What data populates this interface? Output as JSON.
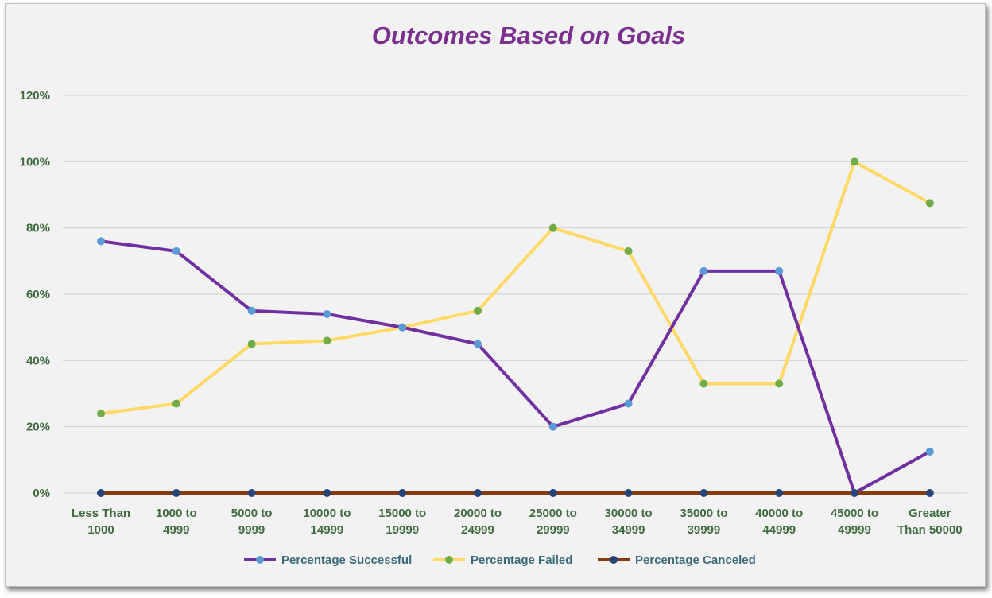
{
  "chart_data": {
    "type": "line",
    "title": "Outcomes Based on Goals",
    "xlabel": "",
    "ylabel": "",
    "ylim": [
      0,
      1.2
    ],
    "yticks": [
      "0%",
      "20%",
      "40%",
      "60%",
      "80%",
      "100%",
      "120%"
    ],
    "categories": [
      "Less Than 1000",
      "1000 to 4999",
      "5000 to 9999",
      "10000 to 14999",
      "15000 to 19999",
      "20000 to 24999",
      "25000 to 29999",
      "30000 to 34999",
      "35000 to 39999",
      "40000 to 44999",
      "45000 to 49999",
      "Greater Than 50000"
    ],
    "category_lines": [
      [
        "Less Than",
        "1000"
      ],
      [
        "1000 to",
        "4999"
      ],
      [
        "5000 to",
        "9999"
      ],
      [
        "10000 to",
        "14999"
      ],
      [
        "15000 to",
        "19999"
      ],
      [
        "20000 to",
        "24999"
      ],
      [
        "25000 to",
        "29999"
      ],
      [
        "30000 to",
        "34999"
      ],
      [
        "35000 to",
        "39999"
      ],
      [
        "40000 to",
        "44999"
      ],
      [
        "45000 to",
        "49999"
      ],
      [
        "Greater",
        "Than 50000"
      ]
    ],
    "series": [
      {
        "name": "Percentage Successful",
        "line_color": "#7030a0",
        "marker_color": "#5b9bd5",
        "values": [
          0.76,
          0.73,
          0.55,
          0.54,
          0.5,
          0.45,
          0.2,
          0.27,
          0.67,
          0.67,
          0.0,
          0.125
        ]
      },
      {
        "name": "Percentage Failed",
        "line_color": "#ffd966",
        "marker_color": "#70ad47",
        "values": [
          0.24,
          0.27,
          0.45,
          0.46,
          0.5,
          0.55,
          0.8,
          0.73,
          0.33,
          0.33,
          1.0,
          0.875
        ]
      },
      {
        "name": "Percentage Canceled",
        "line_color": "#843c0c",
        "marker_color": "#264478",
        "values": [
          0,
          0,
          0,
          0,
          0,
          0,
          0,
          0,
          0,
          0,
          0,
          0
        ]
      }
    ],
    "grid": true,
    "legend": "bottom"
  }
}
